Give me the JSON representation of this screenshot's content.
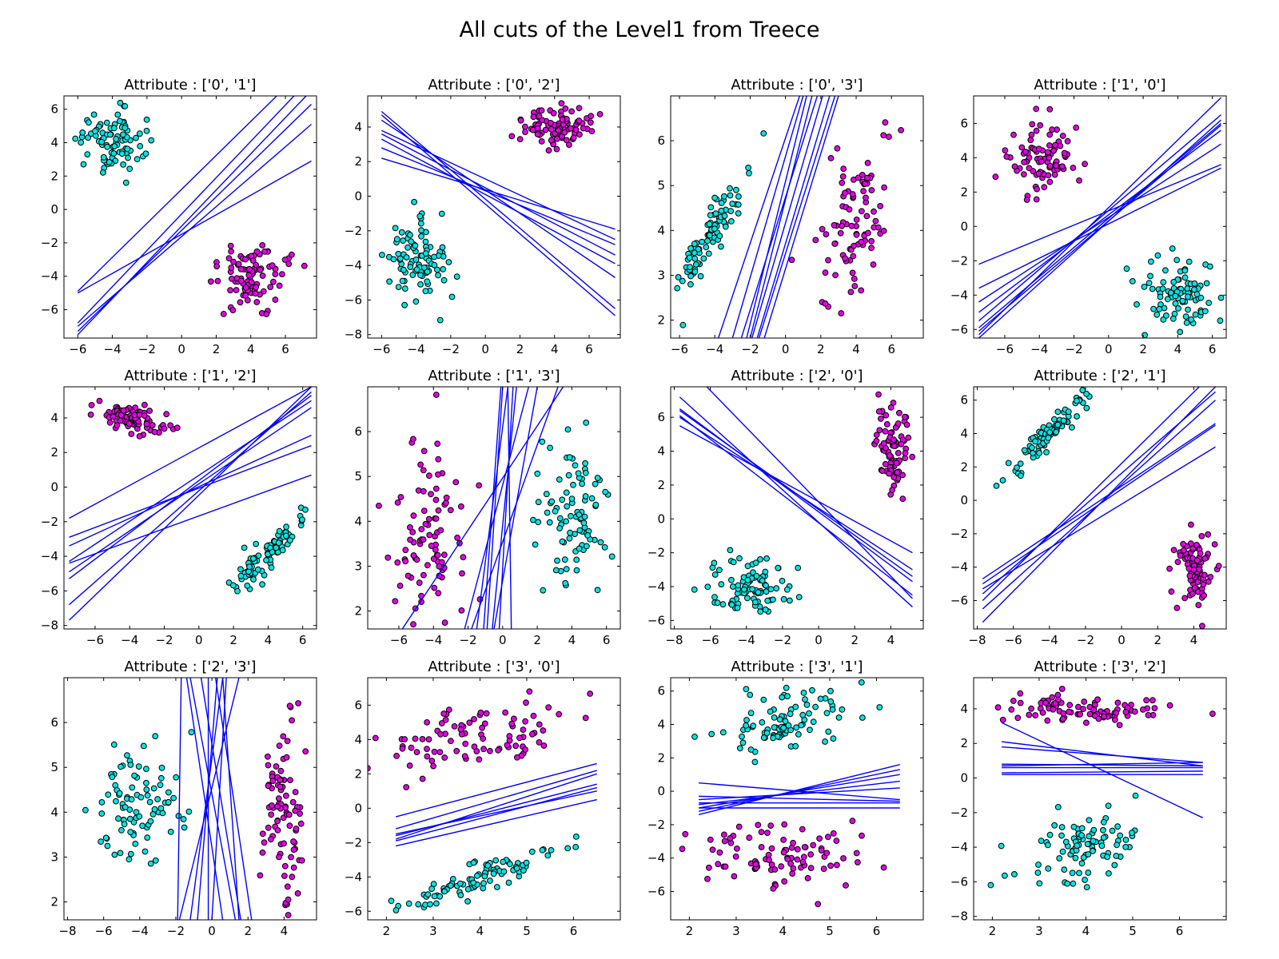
{
  "suptitle": "All cuts of the Level1 from Treece",
  "colors": {
    "class_a": "#00e5e5",
    "class_b": "#e600e6",
    "cut_line": "#0000ff"
  },
  "chart_data": [
    {
      "type": "scatter",
      "title": "Attribute : ['0', '1']",
      "xlim": [
        -6.8,
        7.8
      ],
      "ylim": [
        -7.7,
        6.8
      ],
      "xticks": [
        -6,
        -4,
        -2,
        0,
        2,
        4,
        6
      ],
      "yticks": [
        -6,
        -4,
        -2,
        0,
        2,
        4,
        6
      ],
      "clusters": [
        {
          "class": "a",
          "center": [
            -4.1,
            4.1
          ],
          "spread": [
            0.9,
            1.0
          ],
          "n": 90
        },
        {
          "class": "b",
          "center": [
            4.0,
            -4.0
          ],
          "spread": [
            1.0,
            1.0
          ],
          "n": 90
        }
      ],
      "lines": [
        [
          -6,
          -5.0,
          7.5,
          2.9
        ],
        [
          -6,
          -7.3,
          7.5,
          6.3
        ],
        [
          -6,
          -7.0,
          7.5,
          5.1
        ],
        [
          -6,
          -6.8,
          6.5,
          6.8
        ],
        [
          -6,
          -7.5,
          7.2,
          6.8
        ],
        [
          -6,
          -4.9,
          5.5,
          6.8
        ]
      ]
    },
    {
      "type": "scatter",
      "title": "Attribute : ['0', '2']",
      "xlim": [
        -6.8,
        7.8
      ],
      "ylim": [
        -8.2,
        5.8
      ],
      "xticks": [
        -6,
        -4,
        -2,
        0,
        2,
        4,
        6
      ],
      "yticks": [
        -8,
        -6,
        -4,
        -2,
        0,
        2,
        4
      ],
      "clusters": [
        {
          "class": "a",
          "center": [
            -4.0,
            -3.9
          ],
          "spread": [
            0.9,
            1.2
          ],
          "n": 90
        },
        {
          "class": "b",
          "center": [
            4.0,
            4.0
          ],
          "spread": [
            1.0,
            0.5
          ],
          "n": 90
        }
      ],
      "lines": [
        [
          -6,
          4.7,
          7.5,
          -6.9
        ],
        [
          -6,
          4.4,
          7.5,
          -4.7
        ],
        [
          -6,
          3.3,
          7.5,
          -3.9
        ],
        [
          -6,
          2.2,
          7.5,
          -1.9
        ],
        [
          -6,
          3.8,
          7.5,
          -2.5
        ],
        [
          -6,
          4.9,
          7.5,
          -6.5
        ],
        [
          -6,
          2.8,
          7.5,
          -2.8
        ],
        [
          -6,
          3.6,
          7.5,
          -3.4
        ]
      ]
    },
    {
      "type": "scatter",
      "title": "Attribute : ['0', '3']",
      "xlim": [
        -6.5,
        7.8
      ],
      "ylim": [
        1.6,
        7.0
      ],
      "xticks": [
        -6,
        -4,
        -2,
        0,
        2,
        4,
        6
      ],
      "yticks": [
        2,
        3,
        4,
        5,
        6
      ],
      "clusters": [
        {
          "class": "a",
          "center": [
            -4.3,
            3.9
          ],
          "spread": [
            1.0,
            0.7
          ],
          "n": 90,
          "corr": 0.9
        },
        {
          "class": "b",
          "center": [
            4.0,
            4.1
          ],
          "spread": [
            1.2,
            1.0
          ],
          "n": 90,
          "corr": 0.6
        }
      ],
      "lines": [
        [
          -3.8,
          1.6,
          0.8,
          7.0
        ],
        [
          -2.5,
          1.6,
          1.8,
          7.0
        ],
        [
          -2.2,
          1.6,
          1.2,
          7.0
        ],
        [
          -1.9,
          1.6,
          2.1,
          7.0
        ],
        [
          -1.6,
          1.6,
          2.5,
          7.0
        ],
        [
          -1.5,
          1.6,
          2.8,
          7.0
        ],
        [
          -1.2,
          1.6,
          3.0,
          7.0
        ],
        [
          -2.0,
          1.6,
          1.5,
          7.0
        ],
        [
          -3.0,
          1.6,
          1.0,
          7.0
        ]
      ]
    },
    {
      "type": "scatter",
      "title": "Attribute : ['1', '0']",
      "xlim": [
        -7.8,
        6.8
      ],
      "ylim": [
        -6.5,
        7.6
      ],
      "xticks": [
        -6,
        -4,
        -2,
        0,
        2,
        4,
        6
      ],
      "yticks": [
        -6,
        -4,
        -2,
        0,
        2,
        4,
        6
      ],
      "clusters": [
        {
          "class": "b",
          "center": [
            -3.8,
            3.9
          ],
          "spread": [
            1.0,
            1.0
          ],
          "n": 90
        },
        {
          "class": "a",
          "center": [
            4.0,
            -4.1
          ],
          "spread": [
            1.0,
            1.0
          ],
          "n": 90
        }
      ],
      "lines": [
        [
          -7.5,
          -6.3,
          6.5,
          7.5
        ],
        [
          -7.5,
          -5.9,
          6.5,
          6.0
        ],
        [
          -7.5,
          -6.1,
          6.5,
          5.9
        ],
        [
          -7.5,
          -2.2,
          6.5,
          3.6
        ],
        [
          -7.5,
          -5.0,
          6.5,
          5.6
        ],
        [
          -7.5,
          -4.4,
          6.5,
          4.8
        ],
        [
          -7.5,
          -3.6,
          6.5,
          3.4
        ],
        [
          -7.5,
          -5.5,
          6.5,
          6.5
        ],
        [
          -7.5,
          -6.5,
          6.5,
          6.2
        ]
      ]
    },
    {
      "type": "scatter",
      "title": "Attribute : ['1', '2']",
      "xlim": [
        -7.8,
        6.8
      ],
      "ylim": [
        -8.2,
        5.8
      ],
      "xticks": [
        -6,
        -4,
        -2,
        0,
        2,
        4,
        6
      ],
      "yticks": [
        -8,
        -6,
        -4,
        -2,
        0,
        2,
        4
      ],
      "clusters": [
        {
          "class": "b",
          "center": [
            -4.0,
            4.0
          ],
          "spread": [
            1.0,
            0.5
          ],
          "n": 90,
          "corr": -0.6
        },
        {
          "class": "a",
          "center": [
            4.0,
            -3.9
          ],
          "spread": [
            1.0,
            1.0
          ],
          "n": 90,
          "corr": 0.9
        }
      ],
      "lines": [
        [
          -7.5,
          -1.8,
          6.5,
          5.8
        ],
        [
          -7.5,
          -4.3,
          6.5,
          5.0
        ],
        [
          -7.5,
          -5.3,
          6.5,
          5.3
        ],
        [
          -7.5,
          -7.7,
          6.5,
          5.8
        ],
        [
          -7.5,
          -2.9,
          6.5,
          2.4
        ],
        [
          -7.5,
          -4.4,
          6.5,
          0.7
        ],
        [
          -7.5,
          -3.4,
          6.5,
          3.0
        ],
        [
          -7.5,
          -6.8,
          6.5,
          5.5
        ],
        [
          -7.5,
          -4.9,
          6.5,
          4.6
        ]
      ]
    },
    {
      "type": "scatter",
      "title": "Attribute : ['1', '3']",
      "xlim": [
        -7.8,
        6.8
      ],
      "ylim": [
        1.6,
        7.0
      ],
      "xticks": [
        -6,
        -4,
        -2,
        0,
        2,
        4,
        6
      ],
      "yticks": [
        2,
        3,
        4,
        5,
        6
      ],
      "clusters": [
        {
          "class": "b",
          "center": [
            -4.2,
            3.9
          ],
          "spread": [
            1.3,
            1.0
          ],
          "n": 90
        },
        {
          "class": "a",
          "center": [
            4.1,
            4.0
          ],
          "spread": [
            1.1,
            0.8
          ],
          "n": 90
        }
      ],
      "lines": [
        [
          -5.8,
          1.6,
          3.5,
          7.0
        ],
        [
          -2.2,
          1.6,
          1.5,
          7.0
        ],
        [
          -1.5,
          1.6,
          0.3,
          7.0
        ],
        [
          -0.9,
          1.6,
          0.0,
          7.0
        ],
        [
          -0.6,
          1.6,
          0.8,
          7.0
        ],
        [
          -1.1,
          1.6,
          -0.1,
          7.0
        ],
        [
          -0.2,
          1.6,
          0.6,
          7.0
        ],
        [
          0.5,
          1.6,
          0.3,
          7.0
        ],
        [
          -1.8,
          1.6,
          3.2,
          7.0
        ],
        [
          -0.5,
          1.6,
          2.0,
          7.0
        ]
      ]
    },
    {
      "type": "scatter",
      "title": "Attribute : ['2', '0']",
      "xlim": [
        -8.2,
        5.8
      ],
      "ylim": [
        -6.5,
        7.8
      ],
      "xticks": [
        -8,
        -6,
        -4,
        -2,
        0,
        2,
        4
      ],
      "yticks": [
        -6,
        -4,
        -2,
        0,
        2,
        4,
        6
      ],
      "clusters": [
        {
          "class": "a",
          "center": [
            -3.9,
            -4.0
          ],
          "spread": [
            1.2,
            0.9
          ],
          "n": 90
        },
        {
          "class": "b",
          "center": [
            4.0,
            4.1
          ],
          "spread": [
            0.5,
            1.1
          ],
          "n": 90
        }
      ],
      "lines": [
        [
          -7.7,
          7.2,
          5.2,
          -5.2
        ],
        [
          -7.7,
          6.4,
          5.2,
          -3.4
        ],
        [
          -7.7,
          5.5,
          5.2,
          -2.0
        ],
        [
          -7.7,
          6.1,
          5.2,
          -4.5
        ],
        [
          -7.7,
          6.5,
          5.2,
          -3.7
        ],
        [
          -6.2,
          7.8,
          5.2,
          -4.7
        ],
        [
          -7.7,
          6.0,
          5.2,
          -3.0
        ]
      ]
    },
    {
      "type": "scatter",
      "title": "Attribute : ['2', '1']",
      "xlim": [
        -8.2,
        5.8
      ],
      "ylim": [
        -7.7,
        6.8
      ],
      "xticks": [
        -8,
        -6,
        -4,
        -2,
        0,
        2,
        4
      ],
      "yticks": [
        -6,
        -4,
        -2,
        0,
        2,
        4,
        6
      ],
      "clusters": [
        {
          "class": "a",
          "center": [
            -4.0,
            4.0
          ],
          "spread": [
            1.1,
            1.2
          ],
          "n": 90,
          "corr": 0.95
        },
        {
          "class": "b",
          "center": [
            4.0,
            -4.1
          ],
          "spread": [
            0.5,
            1.1
          ],
          "n": 90
        }
      ],
      "lines": [
        [
          -7.7,
          -4.7,
          5.2,
          4.6
        ],
        [
          -7.7,
          -5.6,
          5.2,
          6.5
        ],
        [
          -7.7,
          -7.3,
          5.2,
          6.8
        ],
        [
          -7.7,
          -5.3,
          5.2,
          3.2
        ],
        [
          -7.7,
          -6.5,
          5.2,
          6.0
        ],
        [
          -7.7,
          -5.0,
          5.2,
          4.5
        ],
        [
          -7.7,
          -6.0,
          4.3,
          6.8
        ]
      ]
    },
    {
      "type": "scatter",
      "title": "Attribute : ['2', '3']",
      "xlim": [
        -8.2,
        5.8
      ],
      "ylim": [
        1.6,
        7.0
      ],
      "xticks": [
        -8,
        -6,
        -4,
        -2,
        0,
        2,
        4
      ],
      "yticks": [
        2,
        3,
        4,
        5,
        6
      ],
      "clusters": [
        {
          "class": "a",
          "center": [
            -4.0,
            4.1
          ],
          "spread": [
            1.2,
            0.7
          ],
          "n": 90
        },
        {
          "class": "b",
          "center": [
            4.0,
            4.0
          ],
          "spread": [
            0.5,
            1.0
          ],
          "n": 90
        }
      ],
      "lines": [
        [
          -1.9,
          1.6,
          -1.7,
          7.0
        ],
        [
          -1.8,
          1.6,
          1.5,
          7.0
        ],
        [
          -1.2,
          1.6,
          0.6,
          7.0
        ],
        [
          -0.8,
          1.6,
          0.3,
          7.0
        ],
        [
          -0.2,
          1.6,
          -0.2,
          7.0
        ],
        [
          0.0,
          1.6,
          0.8,
          7.0
        ],
        [
          0.6,
          1.6,
          -1.4,
          7.0
        ],
        [
          1.3,
          1.6,
          -1.2,
          7.0
        ],
        [
          1.5,
          1.6,
          0.6,
          7.0
        ],
        [
          1.6,
          1.6,
          -0.6,
          7.0
        ],
        [
          2.2,
          1.6,
          0.2,
          7.0
        ]
      ]
    },
    {
      "type": "scatter",
      "title": "Attribute : ['3', '0']",
      "xlim": [
        1.6,
        7.0
      ],
      "ylim": [
        -6.5,
        7.6
      ],
      "xticks": [
        2,
        3,
        4,
        5,
        6
      ],
      "yticks": [
        -6,
        -4,
        -2,
        0,
        2,
        4,
        6
      ],
      "clusters": [
        {
          "class": "b",
          "center": [
            4.0,
            4.0
          ],
          "spread": [
            1.0,
            1.0
          ],
          "n": 90,
          "corr": 0.4
        },
        {
          "class": "a",
          "center": [
            4.0,
            -4.0
          ],
          "spread": [
            0.9,
            1.0
          ],
          "n": 90,
          "corr": 0.92
        }
      ],
      "lines": [
        [
          2.2,
          -0.5,
          6.5,
          2.6
        ],
        [
          2.2,
          -1.2,
          6.5,
          2.2
        ],
        [
          2.2,
          -1.8,
          6.5,
          2.0
        ],
        [
          2.2,
          -1.6,
          6.5,
          1.4
        ],
        [
          2.2,
          -2.2,
          6.5,
          0.5
        ],
        [
          2.2,
          -1.5,
          6.5,
          1.0
        ],
        [
          2.2,
          -1.9,
          6.5,
          1.2
        ]
      ]
    },
    {
      "type": "scatter",
      "title": "Attribute : ['3', '1']",
      "xlim": [
        1.6,
        7.0
      ],
      "ylim": [
        -7.7,
        6.8
      ],
      "xticks": [
        2,
        3,
        4,
        5,
        6
      ],
      "yticks": [
        -6,
        -4,
        -2,
        0,
        2,
        4,
        6
      ],
      "clusters": [
        {
          "class": "a",
          "center": [
            4.0,
            4.1
          ],
          "spread": [
            0.8,
            1.0
          ],
          "n": 90,
          "corr": 0.4
        },
        {
          "class": "b",
          "center": [
            4.0,
            -3.9
          ],
          "spread": [
            0.9,
            1.0
          ],
          "n": 90
        }
      ],
      "lines": [
        [
          2.2,
          0.5,
          6.5,
          -0.5
        ],
        [
          2.2,
          -0.5,
          6.5,
          0.2
        ],
        [
          2.2,
          -0.8,
          6.5,
          0.6
        ],
        [
          2.2,
          -1.0,
          6.5,
          1.0
        ],
        [
          2.2,
          -1.2,
          6.5,
          1.3
        ],
        [
          2.2,
          -1.4,
          6.5,
          1.6
        ],
        [
          2.2,
          -1.0,
          6.5,
          -1.0
        ],
        [
          2.2,
          -0.7,
          6.5,
          -0.7
        ],
        [
          2.2,
          -0.3,
          6.5,
          -0.6
        ]
      ]
    },
    {
      "type": "scatter",
      "title": "Attribute : ['3', '2']",
      "xlim": [
        1.6,
        7.0
      ],
      "ylim": [
        -8.2,
        5.8
      ],
      "xticks": [
        2,
        3,
        4,
        5,
        6
      ],
      "yticks": [
        -8,
        -6,
        -4,
        -2,
        0,
        2,
        4
      ],
      "clusters": [
        {
          "class": "b",
          "center": [
            4.0,
            4.0
          ],
          "spread": [
            0.9,
            0.4
          ],
          "n": 90
        },
        {
          "class": "a",
          "center": [
            4.0,
            -3.9
          ],
          "spread": [
            0.7,
            1.1
          ],
          "n": 90,
          "corr": 0.4
        }
      ],
      "lines": [
        [
          2.2,
          3.2,
          6.5,
          -2.3
        ],
        [
          2.2,
          2.1,
          6.5,
          0.7
        ],
        [
          2.2,
          1.8,
          6.5,
          0.9
        ],
        [
          2.2,
          0.7,
          6.5,
          0.9
        ],
        [
          2.2,
          0.6,
          6.5,
          0.6
        ],
        [
          2.2,
          0.3,
          6.5,
          0.4
        ],
        [
          2.2,
          0.2,
          6.5,
          0.2
        ],
        [
          2.2,
          0.8,
          6.5,
          0.7
        ]
      ]
    }
  ]
}
